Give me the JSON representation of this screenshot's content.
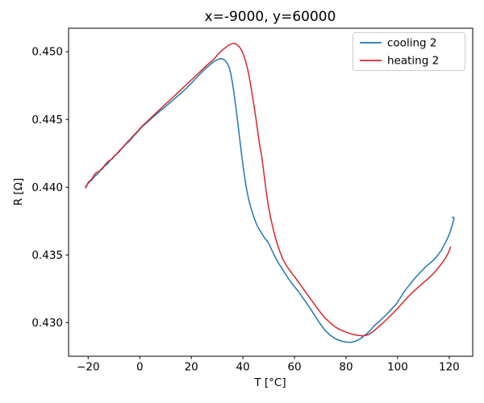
{
  "figure": {
    "background": "#ffffff"
  },
  "chart_data": {
    "type": "line",
    "title": "x=-9000, y=60000",
    "xlabel": "T [°C]",
    "ylabel": "R [Ω]",
    "xlim": [
      -27.6,
      129.1
    ],
    "ylim": [
      0.42752,
      0.45174
    ],
    "grid": false,
    "legend_position": "upper right",
    "axis_color": "#000000",
    "xticks": [
      {
        "v": -20,
        "label": "−20"
      },
      {
        "v": 0,
        "label": "0"
      },
      {
        "v": 20,
        "label": "20"
      },
      {
        "v": 40,
        "label": "40"
      },
      {
        "v": 60,
        "label": "60"
      },
      {
        "v": 80,
        "label": "80"
      },
      {
        "v": 100,
        "label": "100"
      },
      {
        "v": 120,
        "label": "120"
      }
    ],
    "yticks": [
      {
        "v": 0.43,
        "label": "0.430"
      },
      {
        "v": 0.435,
        "label": "0.435"
      },
      {
        "v": 0.44,
        "label": "0.440"
      },
      {
        "v": 0.445,
        "label": "0.445"
      },
      {
        "v": 0.45,
        "label": "0.450"
      }
    ],
    "series": [
      {
        "name": "cooling 2",
        "color": "#1f77b4",
        "points": [
          [
            -21,
            0.44005
          ],
          [
            -20.5,
            0.44015
          ],
          [
            -20,
            0.44028
          ],
          [
            -19.5,
            0.44038
          ],
          [
            -19,
            0.44048
          ],
          [
            -18.5,
            0.44055
          ],
          [
            -18,
            0.44068
          ],
          [
            -17.5,
            0.4408
          ],
          [
            -17,
            0.44088
          ],
          [
            -16.5,
            0.44095
          ],
          [
            -16,
            0.44108
          ],
          [
            -15.5,
            0.44118
          ],
          [
            -15,
            0.44128
          ],
          [
            -14.5,
            0.44135
          ],
          [
            -14,
            0.44148
          ],
          [
            -13.5,
            0.44158
          ],
          [
            -13,
            0.44165
          ],
          [
            -12.5,
            0.44172
          ],
          [
            -12,
            0.44185
          ],
          [
            -11.5,
            0.44198
          ],
          [
            -11,
            0.44205
          ],
          [
            -10.5,
            0.44212
          ],
          [
            -10,
            0.44225
          ],
          [
            -9.5,
            0.44238
          ],
          [
            -9,
            0.44245
          ],
          [
            -8.5,
            0.44252
          ],
          [
            -8,
            0.44262
          ],
          [
            -7.5,
            0.44275
          ],
          [
            -7,
            0.44285
          ],
          [
            -6.5,
            0.44292
          ],
          [
            -6,
            0.44305
          ],
          [
            -5.5,
            0.44315
          ],
          [
            -5,
            0.44325
          ],
          [
            -4.5,
            0.44332
          ],
          [
            -4,
            0.44342
          ],
          [
            -3.5,
            0.44352
          ],
          [
            -3,
            0.44362
          ],
          [
            -2.5,
            0.44375
          ],
          [
            -2,
            0.44385
          ],
          [
            -1,
            0.44405
          ],
          [
            0,
            0.44428
          ],
          [
            1,
            0.44448
          ],
          [
            2,
            0.44465
          ],
          [
            3,
            0.44482
          ],
          [
            4,
            0.44498
          ],
          [
            5,
            0.44515
          ],
          [
            6,
            0.44532
          ],
          [
            7,
            0.44548
          ],
          [
            8,
            0.44565
          ],
          [
            9,
            0.4458
          ],
          [
            10,
            0.44596
          ],
          [
            11,
            0.44612
          ],
          [
            12,
            0.44628
          ],
          [
            13,
            0.44645
          ],
          [
            14,
            0.44662
          ],
          [
            15,
            0.44678
          ],
          [
            16,
            0.44695
          ],
          [
            17,
            0.44712
          ],
          [
            18,
            0.4473
          ],
          [
            19,
            0.44748
          ],
          [
            20,
            0.44768
          ],
          [
            21,
            0.44788
          ],
          [
            22,
            0.44808
          ],
          [
            23,
            0.44828
          ],
          [
            24,
            0.44848
          ],
          [
            25,
            0.44866
          ],
          [
            26,
            0.44884
          ],
          [
            27,
            0.449
          ],
          [
            28,
            0.44916
          ],
          [
            29,
            0.4493
          ],
          [
            30,
            0.44941
          ],
          [
            30.8,
            0.44947
          ],
          [
            31.5,
            0.4495
          ],
          [
            32.2,
            0.44946
          ],
          [
            33,
            0.44938
          ],
          [
            33.8,
            0.4492
          ],
          [
            34.6,
            0.44888
          ],
          [
            35.3,
            0.4484
          ],
          [
            35.9,
            0.44775
          ],
          [
            36.5,
            0.447
          ],
          [
            37.1,
            0.44615
          ],
          [
            37.7,
            0.44525
          ],
          [
            38.3,
            0.4443
          ],
          [
            38.9,
            0.44335
          ],
          [
            39.5,
            0.4424
          ],
          [
            40.1,
            0.4415
          ],
          [
            40.8,
            0.44058
          ],
          [
            41.5,
            0.43978
          ],
          [
            42.3,
            0.43905
          ],
          [
            43.2,
            0.43842
          ],
          [
            44.2,
            0.43782
          ],
          [
            45.3,
            0.43725
          ],
          [
            46.4,
            0.43688
          ],
          [
            47.4,
            0.43655
          ],
          [
            48.6,
            0.4362
          ],
          [
            49.9,
            0.4359
          ],
          [
            51.6,
            0.4352
          ],
          [
            53.4,
            0.43452
          ],
          [
            55.3,
            0.43395
          ],
          [
            57.3,
            0.43335
          ],
          [
            59.4,
            0.4328
          ],
          [
            61.6,
            0.43228
          ],
          [
            63.8,
            0.43168
          ],
          [
            66,
            0.43108
          ],
          [
            68,
            0.43048
          ],
          [
            70,
            0.4299
          ],
          [
            72,
            0.4294
          ],
          [
            74,
            0.42905
          ],
          [
            76,
            0.4288
          ],
          [
            78,
            0.42865
          ],
          [
            80,
            0.42857
          ],
          [
            82,
            0.42855
          ],
          [
            83.5,
            0.42862
          ],
          [
            85,
            0.42875
          ],
          [
            86.5,
            0.42895
          ],
          [
            88,
            0.42918
          ],
          [
            89.5,
            0.42945
          ],
          [
            91,
            0.42978
          ],
          [
            93,
            0.43012
          ],
          [
            95,
            0.43048
          ],
          [
            96.5,
            0.43076
          ],
          [
            98,
            0.43108
          ],
          [
            99.5,
            0.43138
          ],
          [
            101,
            0.43182
          ],
          [
            102.3,
            0.43222
          ],
          [
            103.6,
            0.43256
          ],
          [
            105,
            0.43288
          ],
          [
            106.4,
            0.43322
          ],
          [
            108,
            0.43356
          ],
          [
            109.5,
            0.43386
          ],
          [
            111,
            0.43415
          ],
          [
            112.5,
            0.43438
          ],
          [
            114,
            0.43464
          ],
          [
            115.5,
            0.43496
          ],
          [
            117,
            0.43536
          ],
          [
            118.3,
            0.43582
          ],
          [
            119.4,
            0.43625
          ],
          [
            120.2,
            0.43662
          ],
          [
            120.8,
            0.43696
          ],
          [
            121.2,
            0.43722
          ],
          [
            121.5,
            0.43746
          ],
          [
            121.75,
            0.4376
          ],
          [
            121.85,
            0.43773
          ],
          [
            121.5,
            0.4378
          ],
          [
            121.3,
            0.43776
          ]
        ]
      },
      {
        "name": "heating 2",
        "color": "#d62728",
        "points": [
          [
            -21,
            0.43996
          ],
          [
            -20.6,
            0.44008
          ],
          [
            -20.2,
            0.44028
          ],
          [
            -19.8,
            0.4404
          ],
          [
            -19.4,
            0.44046
          ],
          [
            -19,
            0.44052
          ],
          [
            -18.6,
            0.4406
          ],
          [
            -18.2,
            0.44072
          ],
          [
            -17.8,
            0.44086
          ],
          [
            -17.4,
            0.44098
          ],
          [
            -17,
            0.44105
          ],
          [
            -16.6,
            0.44108
          ],
          [
            -16.2,
            0.44112
          ],
          [
            -15.8,
            0.44116
          ],
          [
            -15.4,
            0.44124
          ],
          [
            -15,
            0.44132
          ],
          [
            -14.5,
            0.44142
          ],
          [
            -14,
            0.44152
          ],
          [
            -13.5,
            0.44164
          ],
          [
            -13,
            0.44176
          ],
          [
            -12.5,
            0.44186
          ],
          [
            -12,
            0.44194
          ],
          [
            -11.5,
            0.442
          ],
          [
            -11,
            0.44206
          ],
          [
            -10.5,
            0.44216
          ],
          [
            -10,
            0.44228
          ],
          [
            -9.5,
            0.44236
          ],
          [
            -9,
            0.44244
          ],
          [
            -8.5,
            0.44256
          ],
          [
            -8,
            0.44268
          ],
          [
            -7.5,
            0.44278
          ],
          [
            -7,
            0.44286
          ],
          [
            -6.5,
            0.44296
          ],
          [
            -6,
            0.44306
          ],
          [
            -5.5,
            0.44318
          ],
          [
            -5,
            0.4433
          ],
          [
            -4.5,
            0.4434
          ],
          [
            -4,
            0.44348
          ],
          [
            -3.5,
            0.44358
          ],
          [
            -3,
            0.4437
          ],
          [
            -2.5,
            0.4438
          ],
          [
            -2,
            0.4439
          ],
          [
            -1,
            0.4441
          ],
          [
            0,
            0.44432
          ],
          [
            1,
            0.44452
          ],
          [
            2,
            0.4447
          ],
          [
            3,
            0.44488
          ],
          [
            4,
            0.44506
          ],
          [
            5,
            0.44524
          ],
          [
            6,
            0.44542
          ],
          [
            7,
            0.4456
          ],
          [
            8,
            0.44578
          ],
          [
            9,
            0.44596
          ],
          [
            10,
            0.44614
          ],
          [
            11,
            0.4463
          ],
          [
            12,
            0.44648
          ],
          [
            13,
            0.44666
          ],
          [
            14,
            0.44684
          ],
          [
            15,
            0.44702
          ],
          [
            16,
            0.4472
          ],
          [
            17,
            0.44738
          ],
          [
            18,
            0.44756
          ],
          [
            19,
            0.44774
          ],
          [
            20,
            0.44792
          ],
          [
            21,
            0.4481
          ],
          [
            22,
            0.44828
          ],
          [
            23,
            0.44846
          ],
          [
            24,
            0.44864
          ],
          [
            25,
            0.44882
          ],
          [
            26,
            0.449
          ],
          [
            27,
            0.44917
          ],
          [
            28,
            0.44933
          ],
          [
            29,
            0.4495
          ],
          [
            30,
            0.44974
          ],
          [
            31,
            0.44994
          ],
          [
            32,
            0.45012
          ],
          [
            33,
            0.45028
          ],
          [
            34,
            0.45042
          ],
          [
            34.8,
            0.45052
          ],
          [
            35.6,
            0.45059
          ],
          [
            36.4,
            0.45062
          ],
          [
            37.2,
            0.45058
          ],
          [
            38,
            0.45048
          ],
          [
            38.8,
            0.45032
          ],
          [
            39.5,
            0.4501
          ],
          [
            40.2,
            0.4498
          ],
          [
            40.9,
            0.4494
          ],
          [
            41.6,
            0.4489
          ],
          [
            42.3,
            0.4483
          ],
          [
            43,
            0.44755
          ],
          [
            43.7,
            0.44672
          ],
          [
            44.4,
            0.4459
          ],
          [
            45.1,
            0.445
          ],
          [
            45.8,
            0.44405
          ],
          [
            46.5,
            0.4431
          ],
          [
            47.2,
            0.4424
          ],
          [
            47.9,
            0.4414
          ],
          [
            48.5,
            0.4405
          ],
          [
            49.1,
            0.4396
          ],
          [
            49.8,
            0.4387
          ],
          [
            50.6,
            0.43788
          ],
          [
            51.6,
            0.43702
          ],
          [
            52.7,
            0.4362
          ],
          [
            54,
            0.43542
          ],
          [
            55.4,
            0.43472
          ],
          [
            56.9,
            0.4342
          ],
          [
            58.4,
            0.4338
          ],
          [
            60,
            0.4334
          ],
          [
            61.7,
            0.43295
          ],
          [
            63.4,
            0.4325
          ],
          [
            65.1,
            0.43205
          ],
          [
            66.8,
            0.4316
          ],
          [
            68.5,
            0.43115
          ],
          [
            70.2,
            0.43072
          ],
          [
            72,
            0.43032
          ],
          [
            74,
            0.42996
          ],
          [
            76,
            0.42966
          ],
          [
            78,
            0.42945
          ],
          [
            80,
            0.4293
          ],
          [
            82,
            0.42916
          ],
          [
            84,
            0.42908
          ],
          [
            86,
            0.42903
          ],
          [
            87.5,
            0.42905
          ],
          [
            89,
            0.42916
          ],
          [
            90.5,
            0.42935
          ],
          [
            92,
            0.4296
          ],
          [
            94,
            0.42993
          ],
          [
            96,
            0.43028
          ],
          [
            98,
            0.43066
          ],
          [
            100,
            0.43106
          ],
          [
            102,
            0.43148
          ],
          [
            104,
            0.4319
          ],
          [
            106,
            0.43228
          ],
          [
            108,
            0.43262
          ],
          [
            110,
            0.43296
          ],
          [
            111.5,
            0.4332
          ],
          [
            113,
            0.43346
          ],
          [
            114.5,
            0.43376
          ],
          [
            116,
            0.4341
          ],
          [
            117.2,
            0.4344
          ],
          [
            118.4,
            0.43472
          ],
          [
            119.4,
            0.43506
          ],
          [
            120.1,
            0.43536
          ],
          [
            120.5,
            0.43558
          ]
        ]
      }
    ]
  }
}
